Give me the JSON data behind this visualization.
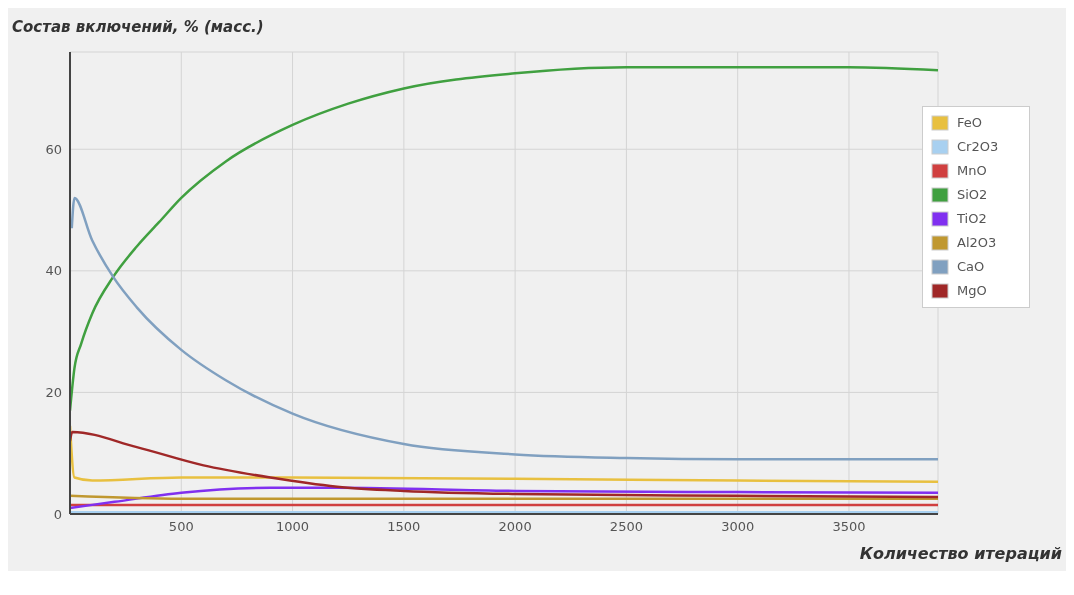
{
  "chart_data": {
    "type": "line",
    "title": "Состав включений, % (масс.)",
    "xlabel": "Количество итераций",
    "xlim": [
      0,
      3900
    ],
    "xticks": [
      500,
      1000,
      1500,
      2000,
      2500,
      3000,
      3500
    ],
    "ylim": [
      0,
      76
    ],
    "yticks": [
      0,
      20,
      40,
      60
    ],
    "grid": true,
    "legend": "top right",
    "marker": "none",
    "line_style": "solid",
    "series": [
      {
        "name": "FeO",
        "color": "#e8c040",
        "x": [
          0,
          20,
          100,
          500,
          1000,
          2000,
          3000,
          3900
        ],
        "values": [
          14.5,
          6,
          5.5,
          6,
          6,
          5.8,
          5.5,
          5.3
        ]
      },
      {
        "name": "Cr2O3",
        "color": "#a8d0f0",
        "x": [
          0,
          1000,
          2000,
          3000,
          3900
        ],
        "values": [
          0.3,
          0.3,
          0.3,
          0.3,
          0.3
        ]
      },
      {
        "name": "MnO",
        "color": "#d04040",
        "x": [
          0,
          1000,
          2000,
          3000,
          3900
        ],
        "values": [
          1.5,
          1.5,
          1.5,
          1.5,
          1.5
        ]
      },
      {
        "name": "SiO2",
        "color": "#40a040",
        "x": [
          0,
          20,
          50,
          100,
          194,
          300,
          400,
          500,
          700,
          1000,
          1250,
          1500,
          2000,
          2500,
          3000,
          3500,
          3900
        ],
        "values": [
          17,
          24,
          28,
          33,
          39,
          44,
          48,
          52,
          58,
          64,
          67.5,
          70,
          72.5,
          73.5,
          73.5,
          73.5,
          73
        ]
      },
      {
        "name": "TiO2",
        "color": "#8030f0",
        "x": [
          0,
          200,
          500,
          900,
          1200,
          2000,
          3000,
          3900
        ],
        "values": [
          1,
          2,
          3.5,
          4.3,
          4.3,
          3.8,
          3.6,
          3.5
        ]
      },
      {
        "name": "Al2O3",
        "color": "#c09830",
        "x": [
          0,
          500,
          1000,
          2000,
          3000,
          3900
        ],
        "values": [
          3,
          2.5,
          2.5,
          2.5,
          2.5,
          2.5
        ]
      },
      {
        "name": "CaO",
        "color": "#80a0c0",
        "x": [
          8,
          20,
          100,
          194,
          300,
          500,
          700,
          1000,
          1500,
          2000,
          2500,
          3000,
          3900
        ],
        "values": [
          47,
          52,
          45,
          39,
          34,
          27,
          22,
          16.5,
          11.5,
          9.8,
          9.2,
          9,
          9
        ]
      },
      {
        "name": "MgO",
        "color": "#a02828",
        "x": [
          0,
          10,
          300,
          600,
          900,
          1200,
          1500,
          2000,
          3000,
          3900
        ],
        "values": [
          12,
          13.5,
          11,
          8,
          6,
          4.5,
          3.8,
          3.3,
          3,
          2.8
        ]
      }
    ]
  }
}
